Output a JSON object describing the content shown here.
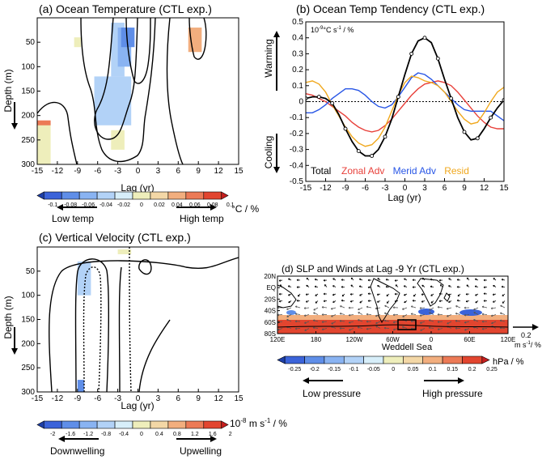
{
  "chart_data": [
    {
      "id": "panel-a",
      "type": "heatmap",
      "title": "(a) Ocean Temperature (CTL exp.)",
      "xlabel": "Lag (yr)",
      "ylabel": "Depth (m)",
      "xlim": [
        -15,
        15
      ],
      "ylim": [
        300,
        0
      ],
      "x_ticks": [
        "-15",
        "-12",
        "-9",
        "-6",
        "-3",
        "0",
        "3",
        "6",
        "9",
        "12",
        "15"
      ],
      "y_ticks": [
        "50",
        "100",
        "150",
        "200",
        "250",
        "300"
      ],
      "colorbar": {
        "labels": [
          "-0.1",
          "-0.08",
          "-0.06",
          "-0.04",
          "-0.02",
          "0",
          "0.02",
          "0.04",
          "0.06",
          "0.08",
          "0.1"
        ],
        "colors": [
          "#1e3fa8",
          "#3b63d9",
          "#5f8ee8",
          "#89b3f2",
          "#b2d2f7",
          "#d7eef9",
          "#eeeebb",
          "#f3d7a6",
          "#f2ae7e",
          "#ec7a56",
          "#e2452f",
          "#c41e1e"
        ],
        "unit": "°C / %"
      },
      "arrow_left_label": "Low temp",
      "arrow_right_label": "High temp",
      "cells": [
        {
          "x0": -4,
          "x1": -2,
          "y0": 10,
          "y1": 120,
          "level": -0.04
        },
        {
          "x0": -3,
          "x1": -1,
          "y0": 20,
          "y1": 100,
          "level": -0.06
        },
        {
          "x0": -2.5,
          "x1": -0.5,
          "y0": 20,
          "y1": 60,
          "level": -0.08
        },
        {
          "x0": -6.5,
          "x1": -1,
          "y0": 120,
          "y1": 220,
          "level": -0.03
        },
        {
          "x0": -4,
          "x1": -2,
          "y0": 230,
          "y1": 270,
          "level": 0.005
        },
        {
          "x0": 7.5,
          "x1": 9.5,
          "y0": 20,
          "y1": 70,
          "level": 0.04
        },
        {
          "x0": -9.5,
          "x1": -8.5,
          "y0": 40,
          "y1": 60,
          "level": 0.005
        },
        {
          "x0": -15,
          "x1": -13,
          "y0": 215,
          "y1": 300,
          "level": 0.005
        },
        {
          "x0": -15,
          "x1": -13,
          "y0": 210,
          "y1": 220,
          "level": 0.06
        }
      ]
    },
    {
      "id": "panel-b",
      "type": "line",
      "title": "(b) Ocean Temp Tendency (CTL exp.)",
      "unit_label": "10",
      "unit_exponent": "-9",
      "unit_suffix": "°C s",
      "unit_suffix_exp": "-1",
      "unit_tail": " / %",
      "xlabel": "Lag (yr)",
      "xlim": [
        -15,
        15
      ],
      "ylim": [
        -0.5,
        0.5
      ],
      "x_ticks": [
        "-15",
        "-12",
        "-9",
        "-6",
        "-3",
        "0",
        "3",
        "6",
        "9",
        "12",
        "15"
      ],
      "y_ticks": [
        "-0.5",
        "-0.4",
        "-0.3",
        "-0.2",
        "-0.1",
        "0",
        "0.1",
        "0.2",
        "0.3",
        "0.4",
        "0.5"
      ],
      "warming_label": "Warming",
      "cooling_label": "Cooling",
      "legend_placement": "bottom",
      "x": [
        -15,
        -14,
        -13,
        -12,
        -11,
        -10,
        -9,
        -8,
        -7,
        -6,
        -5,
        -4,
        -3,
        -2,
        -1,
        0,
        1,
        2,
        3,
        4,
        5,
        6,
        7,
        8,
        9,
        10,
        11,
        12,
        13,
        14,
        15
      ],
      "series": [
        {
          "name": "Total",
          "color": "#000000",
          "markers": true,
          "values": [
            0.02,
            0.03,
            0.03,
            0.02,
            -0.01,
            -0.08,
            -0.17,
            -0.25,
            -0.31,
            -0.34,
            -0.34,
            -0.3,
            -0.22,
            -0.11,
            0.03,
            0.17,
            0.3,
            0.38,
            0.4,
            0.37,
            0.27,
            0.14,
            0.02,
            -0.1,
            -0.19,
            -0.24,
            -0.23,
            -0.17,
            -0.1,
            -0.04,
            0.01
          ]
        },
        {
          "name": "Zonal Adv",
          "color": "#e8403a",
          "markers": false,
          "values": [
            0.05,
            0.04,
            0.02,
            0.0,
            -0.03,
            -0.06,
            -0.09,
            -0.13,
            -0.16,
            -0.18,
            -0.19,
            -0.18,
            -0.15,
            -0.11,
            -0.06,
            -0.01,
            0.04,
            0.08,
            0.11,
            0.12,
            0.13,
            0.12,
            0.1,
            0.06,
            0.01,
            -0.04,
            -0.09,
            -0.13,
            -0.16,
            -0.17,
            -0.17
          ]
        },
        {
          "name": "Merid Adv",
          "color": "#2856e6",
          "markers": false,
          "values": [
            -0.07,
            -0.07,
            -0.05,
            -0.02,
            0.02,
            0.05,
            0.08,
            0.08,
            0.07,
            0.04,
            0.0,
            -0.03,
            -0.04,
            -0.02,
            0.03,
            0.09,
            0.15,
            0.18,
            0.17,
            0.14,
            0.1,
            0.06,
            0.02,
            -0.02,
            -0.05,
            -0.06,
            -0.06,
            -0.06,
            -0.06,
            -0.09,
            -0.12
          ]
        },
        {
          "name": "Resid",
          "color": "#f0a81e",
          "markers": false,
          "values": [
            0.12,
            0.13,
            0.11,
            0.06,
            -0.02,
            -0.09,
            -0.16,
            -0.22,
            -0.26,
            -0.28,
            -0.27,
            -0.23,
            -0.16,
            -0.06,
            0.04,
            0.12,
            0.16,
            0.15,
            0.13,
            0.12,
            0.1,
            0.06,
            0.0,
            -0.06,
            -0.11,
            -0.14,
            -0.13,
            -0.07,
            0.0,
            0.06,
            0.09
          ]
        }
      ]
    },
    {
      "id": "panel-c",
      "type": "heatmap",
      "title": "(c) Vertical Velocity (CTL exp.)",
      "xlabel": "Lag (yr)",
      "ylabel": "Depth (m)",
      "xlim": [
        -15,
        15
      ],
      "ylim": [
        300,
        0
      ],
      "x_ticks": [
        "-15",
        "-12",
        "-9",
        "-6",
        "-3",
        "0",
        "3",
        "6",
        "9",
        "12",
        "15"
      ],
      "y_ticks": [
        "50",
        "100",
        "150",
        "200",
        "250",
        "300"
      ],
      "colorbar": {
        "labels": [
          "-2",
          "-1.6",
          "-1.2",
          "-0.8",
          "-0.4",
          "0",
          "0.4",
          "0.8",
          "1.2",
          "1.6",
          "2"
        ],
        "colors": [
          "#1e3fa8",
          "#3b63d9",
          "#5f8ee8",
          "#89b3f2",
          "#b2d2f7",
          "#d7eef9",
          "#eeeebb",
          "#f3d7a6",
          "#f2ae7e",
          "#ec7a56",
          "#e2452f",
          "#c41e1e"
        ],
        "unit_base": "10",
        "unit_exp": "-8",
        "unit_mid": " m s",
        "unit_mid_exp": "-1",
        "unit_tail": " / %"
      },
      "arrow_left_label": "Downwelling",
      "arrow_right_label": "Upwelling",
      "cells": [
        {
          "x0": -9,
          "x1": -7,
          "y0": 30,
          "y1": 100,
          "level": -0.6
        },
        {
          "x0": -9,
          "x1": -8,
          "y0": 275,
          "y1": 300,
          "level": -1.4
        },
        {
          "x0": -3,
          "x1": -1,
          "y0": 5,
          "y1": 15,
          "level": 0.2
        }
      ]
    },
    {
      "id": "panel-d",
      "type": "heatmap",
      "title": "(d) SLP and Winds at Lag -9 Yr (CTL exp.)",
      "x_ticks": [
        "120E",
        "180",
        "120W",
        "60W",
        "0",
        "60E",
        "120E"
      ],
      "y_ticks": [
        "20N",
        "EQ",
        "20S",
        "40S",
        "60S",
        "80S"
      ],
      "region_label": "Weddell Sea",
      "reference_vector_value": "0.2",
      "reference_vector_unit": "m s",
      "reference_vector_exp": "-1",
      "reference_vector_tail": "/ %",
      "colorbar": {
        "labels": [
          "-0.25",
          "-0.2",
          "-0.15",
          "-0.1",
          "-0.05",
          "0",
          "0.05",
          "0.1",
          "0.15",
          "0.2",
          "0.25"
        ],
        "colors": [
          "#1e3fa8",
          "#3b63d9",
          "#5f8ee8",
          "#89b3f2",
          "#b2d2f7",
          "#d7eef9",
          "#eeeebb",
          "#f3d7a6",
          "#f2ae7e",
          "#ec7a56",
          "#e2452f",
          "#c41e1e"
        ],
        "unit": "hPa / %"
      },
      "arrow_left_label": "Low pressure",
      "arrow_right_label": "High pressure"
    }
  ]
}
